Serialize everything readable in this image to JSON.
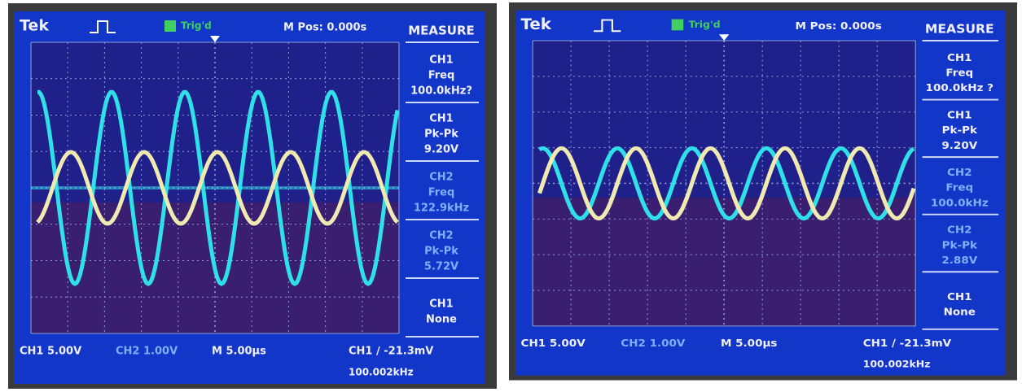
{
  "screens": [
    {
      "header": {
        "brand": "Tek",
        "trigger": "Trig'd",
        "position": "M Pos: 0.000s"
      },
      "measure": {
        "title": "MEASURE",
        "items": [
          [
            "CH1",
            "Freq",
            "100.0kHz?"
          ],
          [
            "CH1",
            "Pk-Pk",
            "9.20V"
          ],
          [
            "CH2",
            "Freq",
            "122.9kHz"
          ],
          [
            "CH2",
            "Pk-Pk",
            "5.72V"
          ],
          [
            "CH1",
            "None"
          ]
        ]
      },
      "footer": {
        "ch1": "CH1 5.00V",
        "ch2": "CH2 1.00V",
        "time": "M 5.00µs",
        "trigger": "CH1 ∕ -21.3mV",
        "frequency": "100.002kHz"
      }
    },
    {
      "header": {
        "brand": "Tek",
        "trigger": "Trig'd",
        "position": "M Pos: 0.000s"
      },
      "measure": {
        "title": "MEASURE",
        "items": [
          [
            "CH1",
            "Freq",
            "100.0kHz ?"
          ],
          [
            "CH1",
            "Pk-Pk",
            "9.20V"
          ],
          [
            "CH2",
            "Freq",
            "100.0kHz"
          ],
          [
            "CH2",
            "Pk-Pk",
            "2.88V"
          ],
          [
            "CH1",
            "None"
          ]
        ]
      },
      "footer": {
        "ch1": "CH1 5.00V",
        "ch2": "CH2 1.00V",
        "time": "M 5.00µs",
        "trigger": "CH1 ∕ -21.3mV",
        "frequency": "100.002kHz"
      }
    }
  ]
}
